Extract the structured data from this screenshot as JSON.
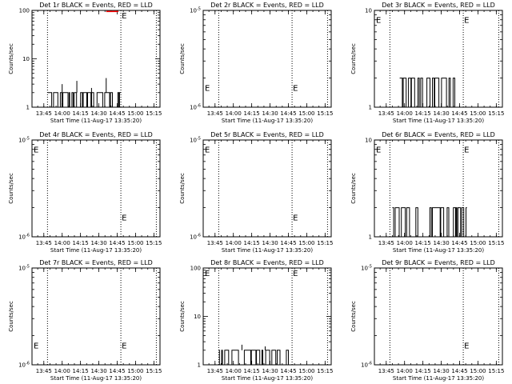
{
  "colors": {
    "events": "#000000",
    "lld": "#ff0000",
    "background": "#ffffff",
    "axes": "#000000"
  },
  "chart_data": [
    {
      "type": "line",
      "title": "Det 1r BLACK = Events, RED = LLD",
      "xlabel": "Start Time (11-Aug-17 13:35:20)",
      "ylabel": "Counts/sec",
      "yscale": "log",
      "ylim": [
        1,
        100
      ],
      "yticks": [
        {
          "v": 1,
          "label": "1"
        },
        {
          "v": 10,
          "label": "10"
        },
        {
          "v": 100,
          "label": "100"
        }
      ],
      "xticks": [
        "13:45",
        "14:00",
        "14:15",
        "14:30",
        "14:45",
        "15:00",
        "15:15"
      ],
      "events_level": 2,
      "events_window": [
        "13:48",
        "14:48"
      ],
      "events_extra_spikes": [
        3,
        3.5,
        2.5,
        4
      ],
      "lld_segment": {
        "start": "14:36",
        "end": "14:46",
        "value": 95
      },
      "vlines": [
        "13:48",
        "14:48",
        "15:17"
      ],
      "marker": {
        "text": "E",
        "time": "14:48",
        "y": 80
      },
      "marker2": null
    },
    {
      "type": "line",
      "title": "Det 2r BLACK = Events, RED = LLD",
      "xlabel": "Start Time (11-Aug-17 13:35:20)",
      "ylabel": "Counts/sec",
      "yscale": "log",
      "ylim": [
        1e-06,
        1e-05
      ],
      "yticks": [
        {
          "v": 1e-06,
          "label": "10^-6"
        },
        {
          "v": 1e-05,
          "label": "10^-5"
        }
      ],
      "xticks": [
        "13:45",
        "14:00",
        "14:15",
        "14:30",
        "14:45",
        "15:00",
        "15:15"
      ],
      "events_level": null,
      "events_window": null,
      "events_extra_spikes": [],
      "lld_segment": null,
      "vlines": [
        "13:48",
        "14:48",
        "15:17"
      ],
      "marker": {
        "text": "E",
        "time": "14:48",
        "y": 1.6e-06
      },
      "marker2": {
        "text": "E",
        "time": "13:35",
        "y": 1.6e-06
      }
    },
    {
      "type": "line",
      "title": "Det 3r BLACK = Events, RED = LLD",
      "xlabel": "Start Time (11-Aug-17 13:35:20)",
      "ylabel": "Counts/sec",
      "yscale": "log",
      "ylim": [
        1,
        10
      ],
      "yticks": [
        {
          "v": 1,
          "label": "1"
        },
        {
          "v": 10,
          "label": "10"
        }
      ],
      "xticks": [
        "13:45",
        "14:00",
        "14:15",
        "14:30",
        "14:45",
        "15:00",
        "15:15"
      ],
      "events_level": 2,
      "events_window": [
        "13:56",
        "14:42"
      ],
      "events_extra_spikes": [],
      "lld_segment": null,
      "vlines": [
        "13:48",
        "14:48",
        "15:17"
      ],
      "marker": {
        "text": "E",
        "time": "14:48",
        "y": 8
      },
      "marker2": {
        "text": "E",
        "time": "13:35",
        "y": 8
      }
    },
    {
      "type": "line",
      "title": "Det 4r BLACK = Events, RED = LLD",
      "xlabel": "Start Time (11-Aug-17 13:35:20)",
      "ylabel": "Counts/sec",
      "yscale": "log",
      "ylim": [
        1e-06,
        1e-05
      ],
      "yticks": [
        {
          "v": 1e-06,
          "label": "10^-6"
        },
        {
          "v": 1e-05,
          "label": "10^-5"
        }
      ],
      "xticks": [
        "13:45",
        "14:00",
        "14:15",
        "14:30",
        "14:45",
        "15:00",
        "15:15"
      ],
      "events_level": null,
      "events_window": null,
      "events_extra_spikes": [],
      "lld_segment": null,
      "vlines": [
        "13:48",
        "14:48",
        "15:17"
      ],
      "marker": {
        "text": "E",
        "time": "14:48",
        "y": 1.6e-06
      },
      "marker2": {
        "text": "E",
        "time": "13:35",
        "y": 8e-06
      }
    },
    {
      "type": "line",
      "title": "Det 5r BLACK = Events, RED = LLD",
      "xlabel": "Start Time (11-Aug-17 13:35:20)",
      "ylabel": "Counts/sec",
      "yscale": "log",
      "ylim": [
        1e-06,
        1e-05
      ],
      "yticks": [
        {
          "v": 1e-06,
          "label": "10^-6"
        },
        {
          "v": 1e-05,
          "label": "10^-5"
        }
      ],
      "xticks": [
        "13:45",
        "14:00",
        "14:15",
        "14:30",
        "14:45",
        "15:00",
        "15:15"
      ],
      "events_level": null,
      "events_window": null,
      "events_extra_spikes": [],
      "lld_segment": null,
      "vlines": [
        "13:48",
        "14:48",
        "15:17"
      ],
      "marker": {
        "text": "E",
        "time": "14:48",
        "y": 1.6e-06
      },
      "marker2": {
        "text": "E",
        "time": "13:35",
        "y": 8e-06
      }
    },
    {
      "type": "line",
      "title": "Det 6r BLACK = Events, RED = LLD",
      "xlabel": "Start Time (11-Aug-17 13:35:20)",
      "ylabel": "Counts/sec",
      "yscale": "log",
      "ylim": [
        1,
        10
      ],
      "yticks": [
        {
          "v": 1,
          "label": "1"
        },
        {
          "v": 10,
          "label": "10"
        }
      ],
      "xticks": [
        "13:45",
        "14:00",
        "14:15",
        "14:30",
        "14:45",
        "15:00",
        "15:15"
      ],
      "events_level": 2,
      "events_window": [
        "13:50",
        "14:51"
      ],
      "events_extra_spikes": [],
      "lld_segment": null,
      "vlines": [
        "13:48",
        "14:48",
        "15:17"
      ],
      "marker": {
        "text": "E",
        "time": "14:48",
        "y": 8
      },
      "marker2": {
        "text": "E",
        "time": "13:35",
        "y": 8
      }
    },
    {
      "type": "line",
      "title": "Det 7r BLACK = Events, RED = LLD",
      "xlabel": "Start Time (11-Aug-17 13:35:20)",
      "ylabel": "Counts/sec",
      "yscale": "log",
      "ylim": [
        1e-06,
        1e-05
      ],
      "yticks": [
        {
          "v": 1e-06,
          "label": "10^-6"
        },
        {
          "v": 1e-05,
          "label": "10^-5"
        }
      ],
      "xticks": [
        "13:45",
        "14:00",
        "14:15",
        "14:30",
        "14:45",
        "15:00",
        "15:15"
      ],
      "events_level": null,
      "events_window": null,
      "events_extra_spikes": [],
      "lld_segment": null,
      "vlines": [
        "13:48",
        "14:48",
        "15:17"
      ],
      "marker": {
        "text": "E",
        "time": "14:48",
        "y": 1.6e-06
      },
      "marker2": {
        "text": "E",
        "time": "13:35",
        "y": 1.6e-06
      }
    },
    {
      "type": "line",
      "title": "Det 8r BLACK = Events, RED = LLD",
      "xlabel": "Start Time (11-Aug-17 13:35:20)",
      "ylabel": "Counts/sec",
      "yscale": "log",
      "ylim": [
        1,
        100
      ],
      "yticks": [
        {
          "v": 1,
          "label": "1"
        },
        {
          "v": 10,
          "label": "10"
        },
        {
          "v": 100,
          "label": "100"
        }
      ],
      "xticks": [
        "13:45",
        "14:00",
        "14:15",
        "14:30",
        "14:45",
        "15:00",
        "15:15"
      ],
      "events_level": 2,
      "events_window": [
        "13:48",
        "14:45"
      ],
      "events_extra_spikes": [
        2.6,
        2.4
      ],
      "lld_segment": null,
      "vlines": [
        "13:48",
        "14:48",
        "15:17"
      ],
      "marker": {
        "text": "E",
        "time": "14:48",
        "y": 80
      },
      "marker2": {
        "text": "E",
        "time": "13:35",
        "y": 80
      }
    },
    {
      "type": "line",
      "title": "Det 9r BLACK = Events, RED = LLD",
      "xlabel": "Start Time (11-Aug-17 13:35:20)",
      "ylabel": "Counts/sec",
      "yscale": "log",
      "ylim": [
        1e-06,
        1e-05
      ],
      "yticks": [
        {
          "v": 1e-06,
          "label": "10^-6"
        },
        {
          "v": 1e-05,
          "label": "10^-5"
        }
      ],
      "xticks": [
        "13:45",
        "14:00",
        "14:15",
        "14:30",
        "14:45",
        "15:00",
        "15:15"
      ],
      "events_level": null,
      "events_window": null,
      "events_extra_spikes": [],
      "lld_segment": null,
      "vlines": [
        "13:48",
        "14:48",
        "15:17"
      ],
      "marker": {
        "text": "E",
        "time": "14:48",
        "y": 1.6e-06
      },
      "marker2": null
    }
  ]
}
